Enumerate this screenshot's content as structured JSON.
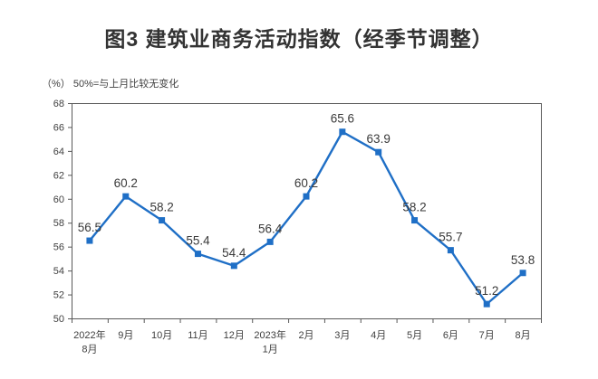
{
  "page": {
    "title": "图3  建筑业商务活动指数（经季节调整）",
    "unit_note": "（%）  50%=与上月比较无变化"
  },
  "chart_data": {
    "type": "line",
    "title": "图3 建筑业商务活动指数（经季节调整）",
    "unit_note": "（%）50%=与上月比较无变化",
    "categories": [
      "2022年8月",
      "9月",
      "10月",
      "11月",
      "12月",
      "2023年1月",
      "2月",
      "3月",
      "4月",
      "5月",
      "6月",
      "7月",
      "8月"
    ],
    "category_label_lines": [
      [
        "2022年",
        "8月"
      ],
      [
        "9月"
      ],
      [
        "10月"
      ],
      [
        "11月"
      ],
      [
        "12月"
      ],
      [
        "2023年",
        "1月"
      ],
      [
        "2月"
      ],
      [
        "3月"
      ],
      [
        "4月"
      ],
      [
        "5月"
      ],
      [
        "6月"
      ],
      [
        "7月"
      ],
      [
        "8月"
      ]
    ],
    "series": [
      {
        "name": "建筑业商务活动指数",
        "values": [
          56.5,
          60.2,
          58.2,
          55.4,
          54.4,
          56.4,
          60.2,
          65.6,
          63.9,
          58.2,
          55.7,
          51.2,
          53.8
        ]
      }
    ],
    "data_labels": true,
    "marker": "square",
    "grid": false,
    "legend_position": "none",
    "ylim": [
      50,
      68
    ],
    "ytick_step": 2,
    "yticks": [
      50,
      52,
      54,
      56,
      58,
      60,
      62,
      64,
      66,
      68
    ],
    "colors": {
      "line": "#1F6FC6",
      "marker": "#1F6FC6",
      "axis": "#595959",
      "tick_text": "#404040",
      "data_label_text": "#3A3A3A",
      "title_text": "#333333"
    }
  }
}
